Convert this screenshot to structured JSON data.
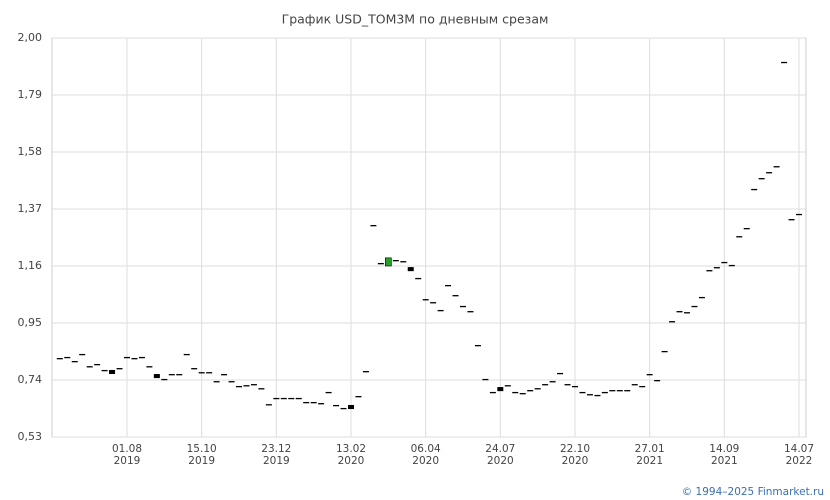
{
  "chart_data": {
    "type": "candlestick",
    "title": "График USD_TOM3M по дневным срезам",
    "categories": [
      null,
      null,
      null,
      null,
      null,
      null,
      null,
      null,
      null,
      "01.08\n2019",
      null,
      null,
      null,
      null,
      null,
      null,
      null,
      null,
      null,
      "15.10\n2019",
      null,
      null,
      null,
      null,
      null,
      null,
      null,
      null,
      null,
      "23.12\n2019",
      null,
      null,
      null,
      null,
      null,
      null,
      null,
      null,
      null,
      "13.02\n2020",
      null,
      null,
      null,
      null,
      null,
      null,
      null,
      null,
      null,
      "06.04\n2020",
      null,
      null,
      null,
      null,
      null,
      null,
      null,
      null,
      null,
      "24.07\n2020",
      null,
      null,
      null,
      null,
      null,
      null,
      null,
      null,
      null,
      "22.10\n2020",
      null,
      null,
      null,
      null,
      null,
      null,
      null,
      null,
      null,
      "27.01\n2021",
      null,
      null,
      null,
      null,
      null,
      null,
      null,
      null,
      null,
      "14.09\n2021",
      null,
      null,
      null,
      null,
      null,
      null,
      null,
      null,
      null,
      "14.07\n2022"
    ],
    "open": [
      0.821,
      0.825,
      0.81,
      0.836,
      0.791,
      0.799,
      0.777,
      0.777,
      0.784,
      0.825,
      0.821,
      0.825,
      0.791,
      0.762,
      0.744,
      0.762,
      0.762,
      0.836,
      0.784,
      0.769,
      0.769,
      0.736,
      0.762,
      0.736,
      0.718,
      0.721,
      0.725,
      0.71,
      0.651,
      0.674,
      0.674,
      0.674,
      0.674,
      0.659,
      0.659,
      0.655,
      0.696,
      0.648,
      0.637,
      0.648,
      0.681,
      0.773,
      1.311,
      1.171,
      1.16,
      1.182,
      1.178,
      1.156,
      1.116,
      1.038,
      1.027,
      0.998,
      1.09,
      1.053,
      1.013,
      0.994,
      0.869,
      0.744,
      0.696,
      0.714,
      0.721,
      0.696,
      0.692,
      0.703,
      0.71,
      0.725,
      0.736,
      0.766,
      0.725,
      0.718,
      0.696,
      0.688,
      0.685,
      0.696,
      0.703,
      0.703,
      0.703,
      0.725,
      0.718,
      0.762,
      0.74,
      0.847,
      0.957,
      0.994,
      0.99,
      1.013,
      1.046,
      1.145,
      1.156,
      1.175,
      1.164,
      1.27,
      1.3,
      1.444,
      1.484,
      1.506,
      1.528,
      1.912,
      1.333,
      1.352
    ],
    "close": [
      0.821,
      0.825,
      0.81,
      0.836,
      0.791,
      0.799,
      0.777,
      0.762,
      0.784,
      0.825,
      0.821,
      0.825,
      0.791,
      0.747,
      0.744,
      0.762,
      0.762,
      0.836,
      0.784,
      0.769,
      0.769,
      0.736,
      0.762,
      0.736,
      0.718,
      0.721,
      0.725,
      0.71,
      0.651,
      0.674,
      0.674,
      0.674,
      0.674,
      0.659,
      0.659,
      0.655,
      0.696,
      0.648,
      0.637,
      0.633,
      0.681,
      0.773,
      1.311,
      1.171,
      1.19,
      1.182,
      1.178,
      1.141,
      1.116,
      1.038,
      1.027,
      0.998,
      1.09,
      1.053,
      1.013,
      0.994,
      0.869,
      0.744,
      0.696,
      0.699,
      0.721,
      0.696,
      0.692,
      0.703,
      0.71,
      0.725,
      0.736,
      0.766,
      0.725,
      0.718,
      0.696,
      0.688,
      0.685,
      0.696,
      0.703,
      0.703,
      0.703,
      0.725,
      0.718,
      0.762,
      0.74,
      0.847,
      0.957,
      0.994,
      0.99,
      1.013,
      1.046,
      1.145,
      1.156,
      1.175,
      1.164,
      1.27,
      1.3,
      1.444,
      1.484,
      1.506,
      1.528,
      1.912,
      1.333,
      1.352
    ],
    "up_color": "#22a02a",
    "down_color": "#000000",
    "ylim": [
      0.53,
      2.0
    ],
    "yticks": [
      {
        "value": 0.53,
        "label": "0,53"
      },
      {
        "value": 0.74,
        "label": "0,74"
      },
      {
        "value": 0.95,
        "label": "0,95"
      },
      {
        "value": 1.16,
        "label": "1,16"
      },
      {
        "value": 1.37,
        "label": "1,37"
      },
      {
        "value": 1.58,
        "label": "1,58"
      },
      {
        "value": 1.79,
        "label": "1,79"
      },
      {
        "value": 2.0,
        "label": "2,00"
      }
    ],
    "grid": true,
    "copyright": "© 1994–2025 Finmarket.ru"
  }
}
